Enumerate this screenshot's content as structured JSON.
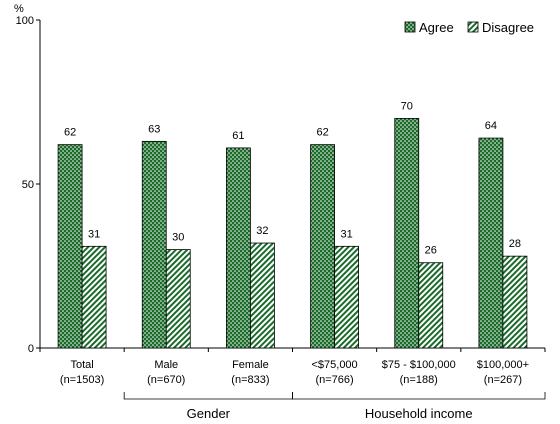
{
  "chart_data": {
    "type": "bar",
    "unit_label": "%",
    "ylim": [
      0,
      100
    ],
    "yticks": [
      0,
      50,
      100
    ],
    "categories": [
      [
        "Total",
        "(n=1503)"
      ],
      [
        "Male",
        "(n=670)"
      ],
      [
        "Female",
        "(n=833)"
      ],
      [
        "<$75,000",
        "(n=766)"
      ],
      [
        "$75 - $100,000",
        "(n=188)"
      ],
      [
        "$100,000+",
        "(n=267)"
      ]
    ],
    "series": [
      {
        "name": "Agree",
        "values": [
          62,
          63,
          61,
          62,
          70,
          64
        ],
        "color": "#1a6b2a",
        "pattern": "dots"
      },
      {
        "name": "Disagree",
        "values": [
          31,
          30,
          32,
          31,
          26,
          28
        ],
        "color": "#1a6b2a",
        "pattern": "diagonal-stripes"
      }
    ],
    "groups": [
      {
        "label": "Gender",
        "from": 1,
        "to": 2
      },
      {
        "label": "Household income",
        "from": 3,
        "to": 5
      }
    ],
    "legend_position": "top-right",
    "grid": false
  }
}
